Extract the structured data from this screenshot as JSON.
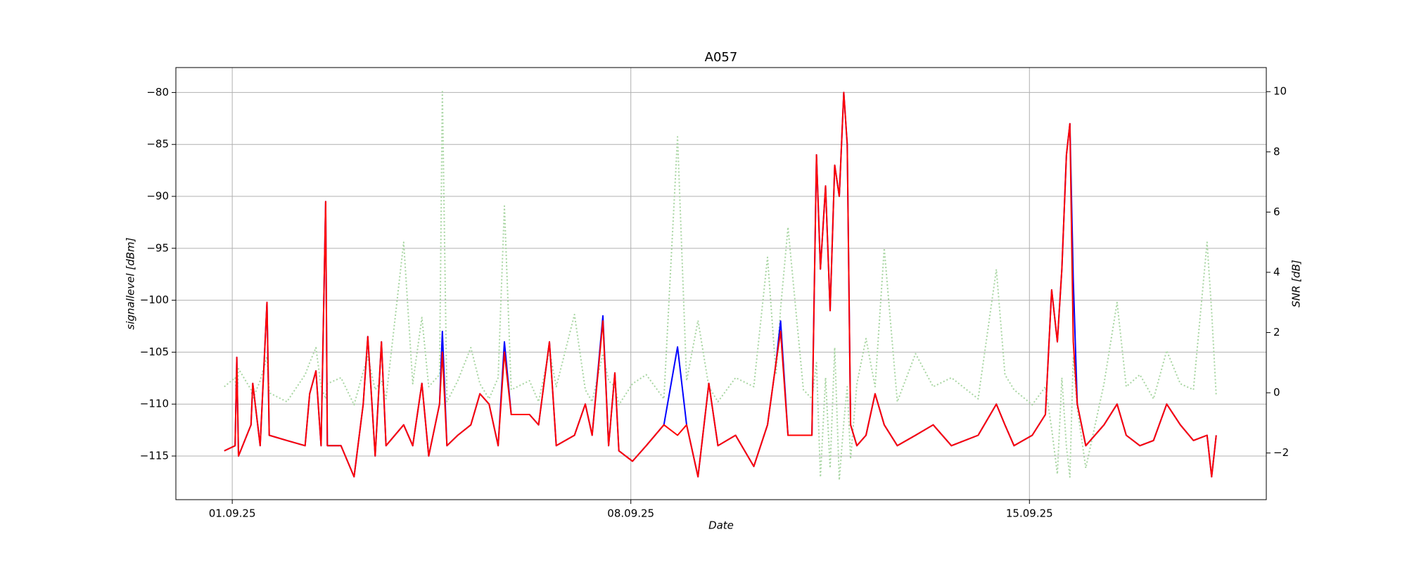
{
  "chart_data": {
    "type": "line",
    "title": "A057",
    "xlabel": "Date",
    "ylabel": "signallevel [dBm]",
    "y2label": "SNR [dB]",
    "grid": true,
    "xlim": [
      0.01,
      19.16
    ],
    "xticks": [
      {
        "value": 1,
        "label": "01.09.25"
      },
      {
        "value": 8,
        "label": "08.09.25"
      },
      {
        "value": 15,
        "label": "15.09.25"
      }
    ],
    "ylim": [
      -119.2,
      -77.6
    ],
    "yticks": [
      {
        "value": -115,
        "label": "−115"
      },
      {
        "value": -110,
        "label": "−110"
      },
      {
        "value": -105,
        "label": "−105"
      },
      {
        "value": -100,
        "label": "−100"
      },
      {
        "value": -95,
        "label": "−95"
      },
      {
        "value": -90,
        "label": "−90"
      },
      {
        "value": -85,
        "label": "−85"
      },
      {
        "value": -80,
        "label": "−80"
      }
    ],
    "y2lim": [
      -3.55,
      10.8
    ],
    "y2ticks": [
      {
        "value": -2,
        "label": "−2"
      },
      0,
      2,
      4,
      6,
      8,
      10
    ],
    "x": [
      0.86,
      1.05,
      1.08,
      1.11,
      1.33,
      1.36,
      1.49,
      1.61,
      1.65,
      1.96,
      2.28,
      2.36,
      2.47,
      2.56,
      2.64,
      2.67,
      2.91,
      3.14,
      3.3,
      3.38,
      3.51,
      3.62,
      3.7,
      4.01,
      4.17,
      4.33,
      4.45,
      4.64,
      4.69,
      4.77,
      4.96,
      5.19,
      5.35,
      5.51,
      5.67,
      5.78,
      5.9,
      6.22,
      6.38,
      6.57,
      6.69,
      7.01,
      7.2,
      7.32,
      7.51,
      7.61,
      7.72,
      7.79,
      8.03,
      8.27,
      8.58,
      8.82,
      8.98,
      9.18,
      9.37,
      9.53,
      9.84,
      10.16,
      10.4,
      10.55,
      10.63,
      10.76,
      11.03,
      11.18,
      11.26,
      11.33,
      11.42,
      11.5,
      11.58,
      11.66,
      11.74,
      11.8,
      11.86,
      11.97,
      12.13,
      12.29,
      12.45,
      12.68,
      13.0,
      13.31,
      13.63,
      14.1,
      14.42,
      14.57,
      14.73,
      15.05,
      15.28,
      15.39,
      15.49,
      15.57,
      15.65,
      15.71,
      15.77,
      15.84,
      15.99,
      16.31,
      16.54,
      16.7,
      16.94,
      17.18,
      17.41,
      17.65,
      17.88,
      18.12,
      18.2,
      18.28
    ],
    "series": [
      {
        "color": "#a8d5a2",
        "axis": "y2",
        "linestyle": "dotted",
        "values": [
          0.2,
          0.5,
          -0.3,
          0.8,
          0.1,
          -0.2,
          0.4,
          1.2,
          0,
          -0.3,
          0.6,
          1.0,
          1.5,
          0.2,
          -0.2,
          0.3,
          0.5,
          -0.4,
          0.7,
          1.2,
          0.1,
          0.4,
          -0.2,
          5.0,
          0.3,
          2.5,
          0.2,
          0.6,
          10.0,
          -0.3,
          0.4,
          1.5,
          0.3,
          -0.2,
          0.5,
          6.2,
          0.1,
          0.4,
          -0.3,
          1.4,
          0.2,
          2.6,
          0.1,
          -0.3,
          1.3,
          0.4,
          0.2,
          -0.4,
          0.3,
          0.6,
          -0.2,
          8.5,
          0.4,
          2.4,
          0.2,
          -0.3,
          0.5,
          0.2,
          4.5,
          0.6,
          2.8,
          5.5,
          0.1,
          -0.2,
          1.0,
          -2.8,
          0.5,
          -2.5,
          1.5,
          -2.9,
          -1.0,
          0.2,
          -2.2,
          0.3,
          1.8,
          0.2,
          4.8,
          -0.3,
          1.3,
          0.2,
          0.5,
          -0.2,
          4.1,
          0.6,
          0.1,
          -0.4,
          0.2,
          -1.2,
          -2.7,
          0.5,
          -1.8,
          -2.8,
          1.2,
          -0.5,
          -2.5,
          0.3,
          3.0,
          0.2,
          0.6,
          -0.2,
          1.4,
          0.3,
          0.1,
          5.0,
          2.7,
          -0.1
        ]
      },
      {
        "color": "#0000ff",
        "values": [
          -114.5,
          -114,
          -105.5,
          -115,
          -112,
          -108,
          -114,
          -100.2,
          -113,
          -113.5,
          -114,
          -109,
          -106.8,
          -114,
          -90.5,
          -114,
          -114,
          -117,
          -110,
          -103.5,
          -115,
          -104,
          -114,
          -112,
          -114,
          -108,
          -115,
          -110,
          -103,
          -114,
          -113,
          -112,
          -109,
          -110,
          -114,
          -104,
          -111,
          -111,
          -112,
          -104,
          -114,
          -113,
          -110,
          -113,
          -101.5,
          -114,
          -107,
          -114.5,
          -115.5,
          -114,
          -112,
          -104.5,
          -112,
          -117,
          -108,
          -114,
          -113,
          -116,
          -112,
          -106,
          -102,
          -113,
          -113,
          -113,
          -86,
          -97,
          -89,
          -101,
          -87,
          -90,
          -80,
          -85,
          -112,
          -114,
          -113,
          -109,
          -112,
          -114,
          -113,
          -112,
          -114,
          -113,
          -110,
          -112,
          -114,
          -113,
          -111,
          -99,
          -104,
          -97,
          -86,
          -83,
          -98,
          -110,
          -114,
          -112,
          -110,
          -113,
          -114,
          -113.5,
          -110,
          -112,
          -113.5,
          -113,
          -117,
          -113
        ]
      },
      {
        "color": "#ff0000",
        "values": [
          -114.5,
          -114,
          -105.5,
          -115,
          -112,
          -108,
          -114,
          -100.2,
          -113,
          -113.5,
          -114,
          -109,
          -106.8,
          -114,
          -90.5,
          -114,
          -114,
          -117,
          -110,
          -103.5,
          -115,
          -104,
          -114,
          -112,
          -114,
          -108,
          -115,
          -110,
          -105,
          -114,
          -113,
          -112,
          -109,
          -110,
          -114,
          -105,
          -111,
          -111,
          -112,
          -104,
          -114,
          -113,
          -110,
          -113,
          -102,
          -114,
          -107,
          -114.5,
          -115.5,
          -114,
          -112,
          -113,
          -112,
          -117,
          -108,
          -114,
          -113,
          -116,
          -112,
          -106,
          -103,
          -113,
          -113,
          -113,
          -86,
          -97,
          -89,
          -101,
          -87,
          -90,
          -80,
          -85,
          -112,
          -114,
          -113,
          -109,
          -112,
          -114,
          -113,
          -112,
          -114,
          -113,
          -110,
          -112,
          -114,
          -113,
          -111,
          -99,
          -104,
          -97,
          -86,
          -83,
          -104,
          -110,
          -114,
          -112,
          -110,
          -113,
          -114,
          -113.5,
          -110,
          -112,
          -113.5,
          -113,
          -117,
          -113
        ]
      }
    ]
  }
}
